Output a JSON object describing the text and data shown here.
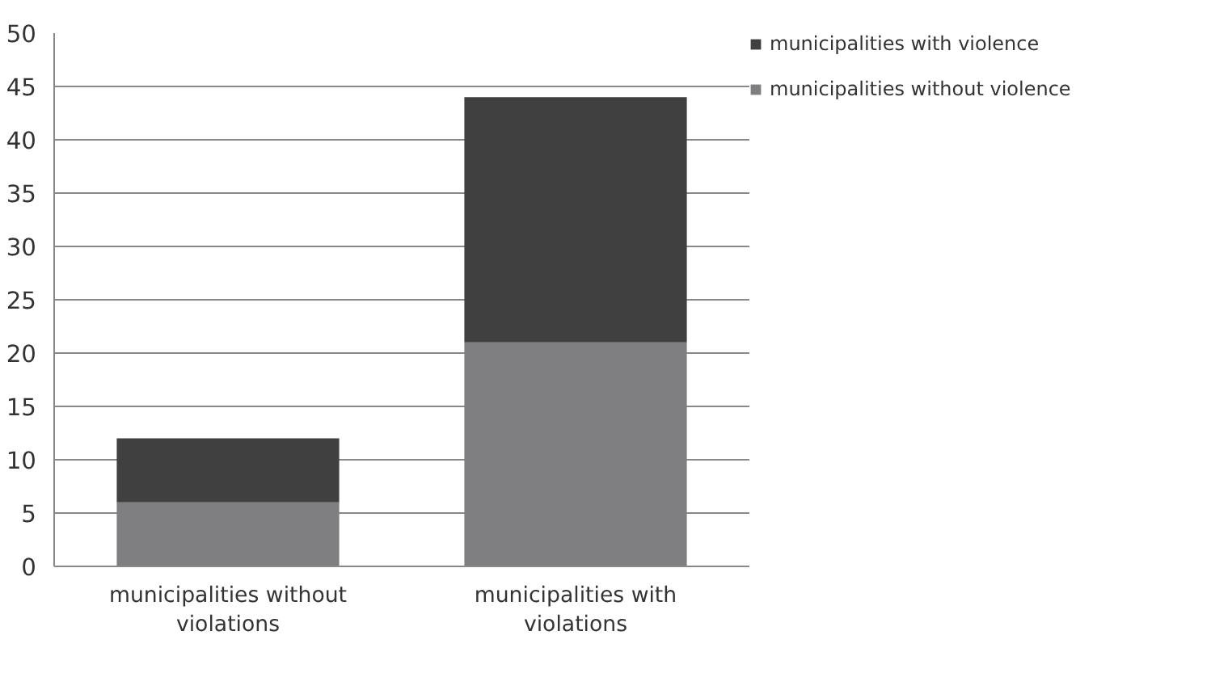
{
  "chart_data": {
    "type": "bar",
    "stacked": true,
    "categories": [
      "municipalities without violations",
      "municipalities with violations"
    ],
    "series": [
      {
        "name": "municipalities without violence",
        "color": "#7f7e80",
        "values": [
          6,
          21
        ]
      },
      {
        "name": "municipalities with violence",
        "color": "#404040",
        "values": [
          6,
          23
        ]
      }
    ],
    "ylim": [
      0,
      50
    ],
    "yticks": [
      0,
      5,
      10,
      15,
      20,
      25,
      30,
      35,
      40,
      45,
      50
    ],
    "grid": "y",
    "legend": "right"
  }
}
